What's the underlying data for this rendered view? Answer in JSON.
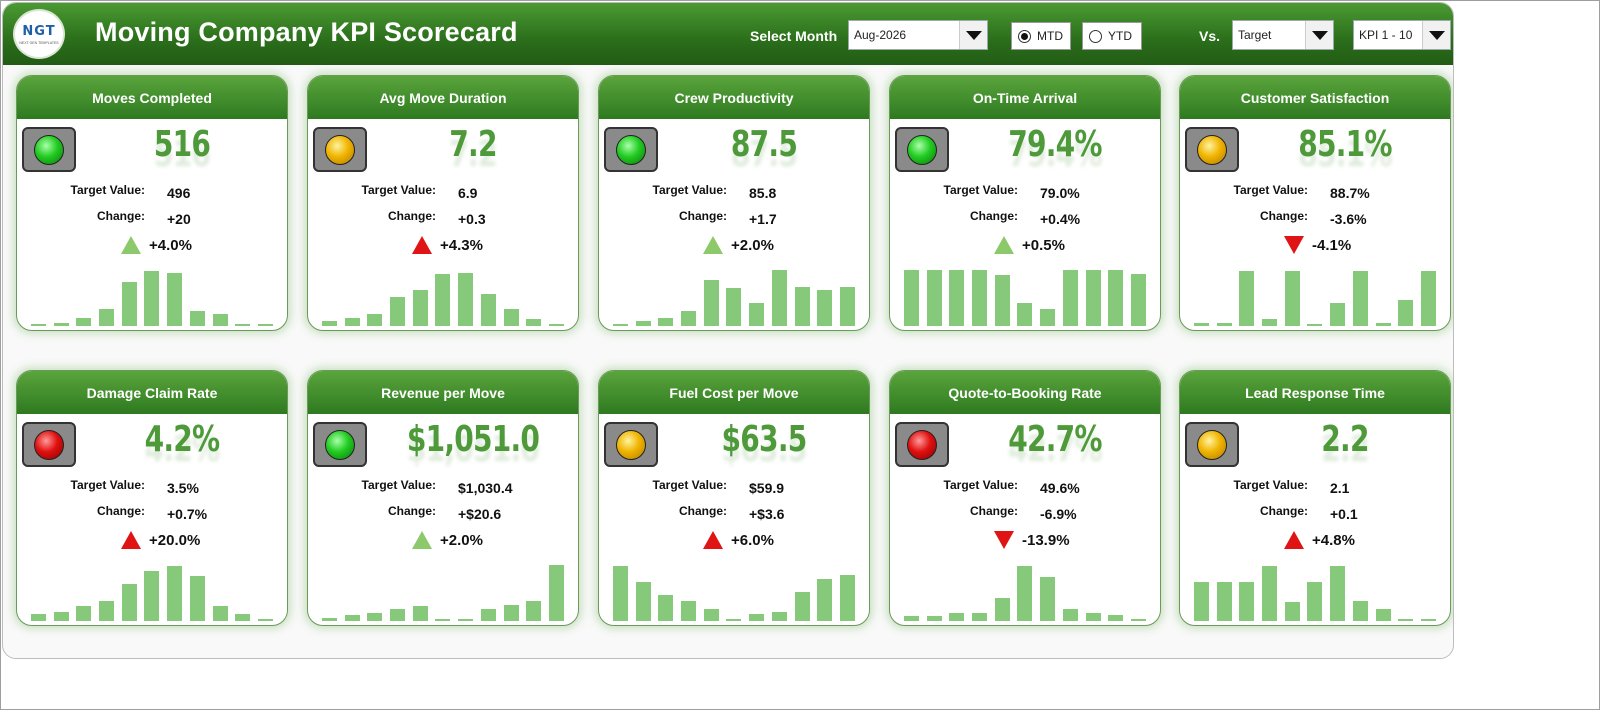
{
  "header": {
    "logo_text": "NGT",
    "logo_subtext": "NEXT GEN TEMPLATES",
    "title": "Moving Company KPI Scorecard",
    "select_month_label": "Select Month",
    "month_value": "Aug-2026",
    "mtd_label": "MTD",
    "ytd_label": "YTD",
    "mtd_selected": true,
    "vs_label": "Vs.",
    "compare_value": "Target",
    "kpi_range_value": "KPI 1 - 10"
  },
  "labels": {
    "target": "Target Value:",
    "change": "Change:"
  },
  "colors": {
    "header_green": "#2b6e1b",
    "value_green": "#4e9a3a",
    "bar_green": "#86c97a",
    "up_green": "#8cc96a",
    "red": "#e01414"
  },
  "cards": [
    {
      "title": "Moves Completed",
      "light": "green",
      "value": "516",
      "target": "496",
      "change": "+20",
      "pct": "+4.0%",
      "trend": "up-good",
      "bars": [
        0.02,
        0.06,
        0.14,
        0.3,
        0.75,
        0.95,
        0.92,
        0.25,
        0.2,
        0.02,
        0.02
      ]
    },
    {
      "title": "Avg Move Duration",
      "light": "yellow",
      "value": "7.2",
      "target": "6.9",
      "change": "+0.3",
      "pct": "+4.3%",
      "trend": "up-bad",
      "bars": [
        0.08,
        0.14,
        0.2,
        0.5,
        0.62,
        0.9,
        0.92,
        0.55,
        0.3,
        0.12,
        0.02
      ]
    },
    {
      "title": "Crew Productivity",
      "light": "green",
      "value": "87.5",
      "target": "85.8",
      "change": "+1.7",
      "pct": "+2.0%",
      "trend": "up-good",
      "bars": [
        0.02,
        0.08,
        0.14,
        0.25,
        0.8,
        0.65,
        0.4,
        0.97,
        0.68,
        0.62,
        0.67
      ]
    },
    {
      "title": "On-Time Arrival",
      "light": "green",
      "value": "79.4%",
      "target": "79.0%",
      "change": "+0.4%",
      "pct": "+0.5%",
      "trend": "up-good",
      "bars": [
        0.97,
        0.97,
        0.97,
        0.97,
        0.88,
        0.4,
        0.3,
        0.97,
        0.97,
        0.97,
        0.9
      ]
    },
    {
      "title": "Customer Satisfaction",
      "light": "yellow",
      "value": "85.1%",
      "target": "88.7%",
      "change": "-3.6%",
      "pct": "-4.1%",
      "trend": "down-bad",
      "bars": [
        0.06,
        0.06,
        0.95,
        0.12,
        0.95,
        0.02,
        0.4,
        0.95,
        0.06,
        0.45,
        0.95
      ]
    },
    {
      "title": "Damage Claim Rate",
      "light": "red",
      "value": "4.2%",
      "target": "3.5%",
      "change": "+0.7%",
      "pct": "+20.0%",
      "trend": "up-bad",
      "bars": [
        0.12,
        0.15,
        0.25,
        0.35,
        0.63,
        0.87,
        0.95,
        0.78,
        0.25,
        0.12,
        0.02
      ]
    },
    {
      "title": "Revenue per Move",
      "light": "green",
      "value": "$1,051.0",
      "target": "$1,030.4",
      "change": "+$20.6",
      "pct": "+2.0%",
      "trend": "up-good",
      "bars": [
        0.06,
        0.1,
        0.14,
        0.2,
        0.25,
        0.02,
        0.02,
        0.2,
        0.28,
        0.35,
        0.97
      ]
    },
    {
      "title": "Fuel Cost per Move",
      "light": "yellow",
      "value": "$63.5",
      "target": "$59.9",
      "change": "+$3.6",
      "pct": "+6.0%",
      "trend": "up-bad",
      "bars": [
        0.95,
        0.68,
        0.45,
        0.35,
        0.2,
        0.02,
        0.12,
        0.15,
        0.5,
        0.72,
        0.8
      ]
    },
    {
      "title": "Quote-to-Booking Rate",
      "light": "red",
      "value": "42.7%",
      "target": "49.6%",
      "change": "-6.9%",
      "pct": "-13.9%",
      "trend": "down-bad",
      "bars": [
        0.08,
        0.08,
        0.14,
        0.14,
        0.4,
        0.95,
        0.75,
        0.2,
        0.14,
        0.1,
        0.03
      ]
    },
    {
      "title": "Lead Response Time",
      "light": "yellow",
      "value": "2.2",
      "target": "2.1",
      "change": "+0.1",
      "pct": "+4.8%",
      "trend": "up-bad",
      "bars": [
        0.68,
        0.68,
        0.68,
        0.95,
        0.32,
        0.68,
        0.95,
        0.35,
        0.2,
        0.02,
        0.02
      ]
    }
  ]
}
